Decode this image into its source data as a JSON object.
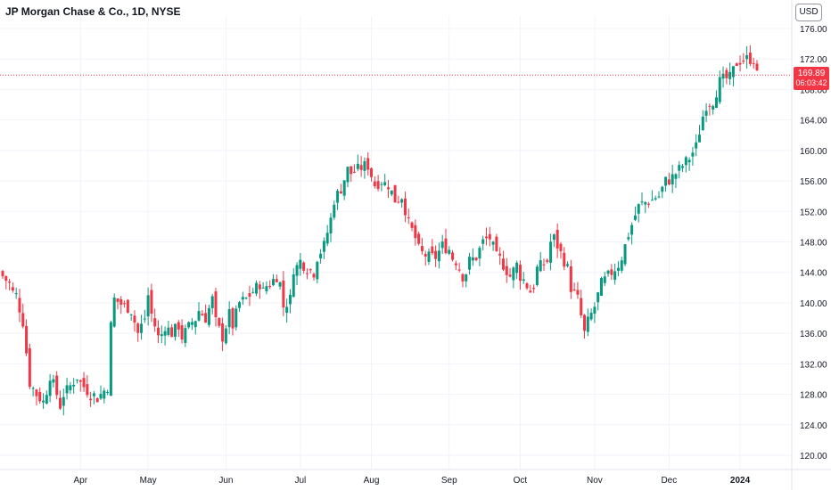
{
  "header": {
    "title": "JP Morgan Chase & Co., 1D, NYSE",
    "currency_label": "USD"
  },
  "price_badge": {
    "last_price": "169.89",
    "countdown": "06:03:42"
  },
  "colors": {
    "up": "#089981",
    "down": "#f23645",
    "grid": "#f0f3fa",
    "axis_text": "#131722",
    "background": "#ffffff"
  },
  "chart_data": {
    "type": "candlestick",
    "title": "JP Morgan Chase & Co., 1D, NYSE",
    "interval": "1D",
    "exchange": "NYSE",
    "currency": "USD",
    "last_price": 169.89,
    "ylim": [
      118,
      177
    ],
    "y_ticks": [
      120,
      124,
      128,
      132,
      136,
      140,
      144,
      148,
      152,
      156,
      160,
      164,
      168,
      172,
      176
    ],
    "y_tick_labels": [
      "120.00",
      "124.00",
      "128.00",
      "132.00",
      "136.00",
      "140.00",
      "144.00",
      "148.00",
      "152.00",
      "156.00",
      "160.00",
      "164.00",
      "168.00",
      "172.00",
      "176.00"
    ],
    "x_ticks": [
      {
        "label": "Apr",
        "bold": false
      },
      {
        "label": "May",
        "bold": false
      },
      {
        "label": "Jun",
        "bold": false
      },
      {
        "label": "Jul",
        "bold": false
      },
      {
        "label": "Aug",
        "bold": false
      },
      {
        "label": "Sep",
        "bold": false
      },
      {
        "label": "Oct",
        "bold": false
      },
      {
        "label": "Nov",
        "bold": false
      },
      {
        "label": "Dec",
        "bold": false
      },
      {
        "label": "2024",
        "bold": true
      }
    ],
    "grid": true,
    "close_anchors": [
      [
        "2023-03-01",
        143.5
      ],
      [
        "2023-03-03",
        142.5
      ],
      [
        "2023-03-07",
        141.0
      ],
      [
        "2023-03-09",
        137.5
      ],
      [
        "2023-03-10",
        133.5
      ],
      [
        "2023-03-13",
        129.5
      ],
      [
        "2023-03-15",
        128.0
      ],
      [
        "2023-03-17",
        127.0
      ],
      [
        "2023-03-20",
        128.5
      ],
      [
        "2023-03-21",
        130.5
      ],
      [
        "2023-03-23",
        128.0
      ],
      [
        "2023-03-24",
        126.5
      ],
      [
        "2023-03-28",
        128.5
      ],
      [
        "2023-03-31",
        130.3
      ],
      [
        "2023-04-03",
        129.5
      ],
      [
        "2023-04-06",
        128.0
      ],
      [
        "2023-04-10",
        127.5
      ],
      [
        "2023-04-13",
        129.0
      ],
      [
        "2023-04-14",
        137.0
      ],
      [
        "2023-04-17",
        140.5
      ],
      [
        "2023-04-20",
        139.5
      ],
      [
        "2023-04-24",
        139.0
      ],
      [
        "2023-04-26",
        136.0
      ],
      [
        "2023-04-28",
        138.0
      ],
      [
        "2023-05-01",
        141.0
      ],
      [
        "2023-05-02",
        138.5
      ],
      [
        "2023-05-04",
        135.5
      ],
      [
        "2023-05-08",
        137.0
      ],
      [
        "2023-05-10",
        136.0
      ],
      [
        "2023-05-12",
        137.0
      ],
      [
        "2023-05-15",
        135.5
      ],
      [
        "2023-05-18",
        137.5
      ],
      [
        "2023-05-22",
        139.0
      ],
      [
        "2023-05-24",
        138.0
      ],
      [
        "2023-05-26",
        140.5
      ],
      [
        "2023-05-31",
        135.5
      ],
      [
        "2023-06-02",
        138.5
      ],
      [
        "2023-06-05",
        137.0
      ],
      [
        "2023-06-07",
        140.0
      ],
      [
        "2023-06-09",
        140.5
      ],
      [
        "2023-06-12",
        141.0
      ],
      [
        "2023-06-15",
        142.5
      ],
      [
        "2023-06-16",
        141.5
      ],
      [
        "2023-06-20",
        142.5
      ],
      [
        "2023-06-22",
        143.5
      ],
      [
        "2023-06-26",
        139.5
      ],
      [
        "2023-06-28",
        140.5
      ],
      [
        "2023-06-29",
        144.5
      ],
      [
        "2023-07-03",
        145.5
      ],
      [
        "2023-07-05",
        144.5
      ],
      [
        "2023-07-07",
        144.0
      ],
      [
        "2023-07-10",
        146.0
      ],
      [
        "2023-07-12",
        147.5
      ],
      [
        "2023-07-14",
        151.0
      ],
      [
        "2023-07-17",
        153.5
      ],
      [
        "2023-07-19",
        155.0
      ],
      [
        "2023-07-21",
        157.5
      ],
      [
        "2023-07-24",
        157.0
      ],
      [
        "2023-07-26",
        157.5
      ],
      [
        "2023-07-28",
        158.0
      ],
      [
        "2023-07-31",
        158.0
      ],
      [
        "2023-08-02",
        155.5
      ],
      [
        "2023-08-04",
        156.0
      ],
      [
        "2023-08-08",
        155.5
      ],
      [
        "2023-08-10",
        153.5
      ],
      [
        "2023-08-14",
        154.0
      ],
      [
        "2023-08-16",
        150.5
      ],
      [
        "2023-08-18",
        148.5
      ],
      [
        "2023-08-22",
        146.5
      ],
      [
        "2023-08-24",
        146.0
      ],
      [
        "2023-08-28",
        146.0
      ],
      [
        "2023-08-30",
        147.5
      ],
      [
        "2023-09-01",
        147.0
      ],
      [
        "2023-09-05",
        145.5
      ],
      [
        "2023-09-07",
        143.5
      ],
      [
        "2023-09-11",
        145.5
      ],
      [
        "2023-09-13",
        146.0
      ],
      [
        "2023-09-15",
        148.0
      ],
      [
        "2023-09-19",
        148.5
      ],
      [
        "2023-09-21",
        146.0
      ],
      [
        "2023-09-25",
        145.0
      ],
      [
        "2023-09-27",
        143.5
      ],
      [
        "2023-09-29",
        145.0
      ],
      [
        "2023-10-03",
        143.0
      ],
      [
        "2023-10-05",
        141.5
      ],
      [
        "2023-10-09",
        144.5
      ],
      [
        "2023-10-12",
        145.5
      ],
      [
        "2023-10-13",
        148.0
      ],
      [
        "2023-10-16",
        148.5
      ],
      [
        "2023-10-18",
        146.5
      ],
      [
        "2023-10-20",
        144.5
      ],
      [
        "2023-10-23",
        142.0
      ],
      [
        "2023-10-25",
        140.5
      ],
      [
        "2023-10-27",
        136.0
      ],
      [
        "2023-10-30",
        137.5
      ],
      [
        "2023-11-01",
        139.5
      ],
      [
        "2023-11-03",
        142.5
      ],
      [
        "2023-11-06",
        143.0
      ],
      [
        "2023-11-08",
        144.0
      ],
      [
        "2023-11-10",
        145.0
      ],
      [
        "2023-11-13",
        146.0
      ],
      [
        "2023-11-15",
        149.0
      ],
      [
        "2023-11-17",
        151.5
      ],
      [
        "2023-11-21",
        153.0
      ],
      [
        "2023-11-24",
        153.5
      ],
      [
        "2023-11-28",
        154.0
      ],
      [
        "2023-11-30",
        156.0
      ],
      [
        "2023-12-04",
        156.5
      ],
      [
        "2023-12-06",
        157.5
      ],
      [
        "2023-12-08",
        158.5
      ],
      [
        "2023-12-11",
        159.0
      ],
      [
        "2023-12-13",
        160.5
      ],
      [
        "2023-12-15",
        164.5
      ],
      [
        "2023-12-18",
        166.0
      ],
      [
        "2023-12-20",
        166.5
      ],
      [
        "2023-12-22",
        169.0
      ],
      [
        "2023-12-27",
        169.5
      ],
      [
        "2023-12-29",
        171.5
      ],
      [
        "2024-01-03",
        172.0
      ],
      [
        "2024-01-05",
        172.0
      ],
      [
        "2024-01-08",
        169.89
      ]
    ]
  }
}
